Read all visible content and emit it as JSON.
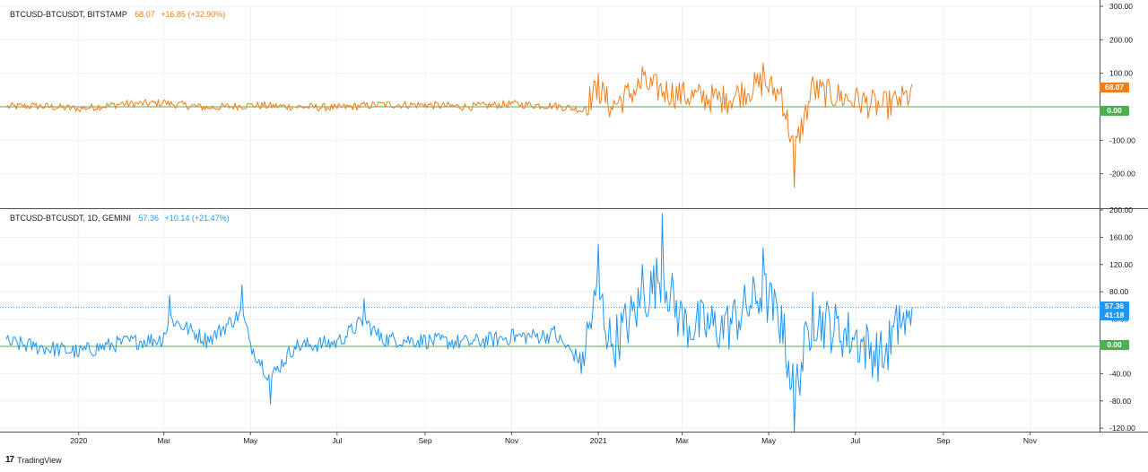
{
  "colors": {
    "top_series": "#f07e1a",
    "bottom_series": "#2196f3",
    "zero_line": "#4caf50",
    "grid": "#eef0f4",
    "pane_border": "#50535e"
  },
  "panes": {
    "top": {
      "symbol": "BTCUSD-BTCUSDT, BITSTAMP",
      "value": "68.07",
      "change": "+16.85 (+32.90%)",
      "price_tag": "68.07",
      "zero_tag": "0.00"
    },
    "bottom": {
      "symbol": "BTCUSD-BTCUSDT, 1D, GEMINI",
      "value": "57.36",
      "change": "+10.14 (+21.47%)",
      "price_tag": "57.36",
      "countdown": "41:18",
      "zero_tag": "0.00"
    }
  },
  "branding": {
    "logo": "17",
    "name": "TradingView"
  },
  "chart_data": [
    {
      "type": "line",
      "title": "BTCUSD-BTCUSDT, BITSTAMP",
      "y_ticks": [
        "300.00",
        "200.00",
        "100.00",
        "-100.00",
        "-200.00"
      ],
      "ylim": [
        -300,
        300
      ],
      "x_ticks": [
        "2020",
        "Mar",
        "May",
        "Jul",
        "Sep",
        "Nov",
        "2021",
        "Mar",
        "May",
        "Jul",
        "Sep",
        "Nov"
      ],
      "series": [
        {
          "x": [
            "2019-11-11",
            "2019-12-01",
            "2020-01-01",
            "2020-02-01",
            "2020-03-01",
            "2020-04-01",
            "2020-05-01",
            "2020-06-01",
            "2020-07-01",
            "2020-08-01",
            "2020-09-01",
            "2020-10-01",
            "2020-11-01",
            "2020-12-01",
            "2020-12-20",
            "2021-01-01",
            "2021-01-10",
            "2021-02-01",
            "2021-03-01",
            "2021-04-01",
            "2021-04-27",
            "2021-05-10",
            "2021-05-19",
            "2021-06-01",
            "2021-07-01",
            "2021-07-20",
            "2021-08-01",
            "2021-08-10"
          ],
          "values": [
            0,
            5,
            -10,
            15,
            20,
            -5,
            8,
            0,
            -5,
            12,
            10,
            0,
            15,
            5,
            -15,
            100,
            0,
            120,
            60,
            40,
            130,
            60,
            -240,
            90,
            35,
            0,
            30,
            68
          ]
        }
      ],
      "zero_line": 0
    },
    {
      "type": "line",
      "title": "BTCUSD-BTCUSDT, 1D, GEMINI",
      "y_ticks": [
        "200.00",
        "160.00",
        "120.00",
        "80.00",
        "40.00",
        "-40.00",
        "-80.00",
        "-120.00"
      ],
      "ylim": [
        -125,
        200
      ],
      "x_ticks": [
        "2020",
        "Mar",
        "May",
        "Jul",
        "Sep",
        "Nov",
        "2021",
        "Mar",
        "May",
        "Jul",
        "Sep",
        "Nov"
      ],
      "series": [
        {
          "x": [
            "2019-11-11",
            "2019-12-01",
            "2020-01-01",
            "2020-02-01",
            "2020-03-01",
            "2020-03-05",
            "2020-04-01",
            "2020-04-25",
            "2020-05-01",
            "2020-05-15",
            "2020-06-01",
            "2020-07-01",
            "2020-07-20",
            "2020-08-01",
            "2020-09-01",
            "2020-10-01",
            "2020-11-01",
            "2020-12-01",
            "2020-12-20",
            "2021-01-01",
            "2021-01-10",
            "2021-02-01",
            "2021-02-15",
            "2021-03-01",
            "2021-04-01",
            "2021-04-27",
            "2021-05-10",
            "2021-05-19",
            "2021-06-01",
            "2021-07-01",
            "2021-07-20",
            "2021-08-01",
            "2021-08-10"
          ],
          "values": [
            10,
            0,
            -15,
            10,
            20,
            75,
            15,
            90,
            5,
            -85,
            0,
            10,
            70,
            20,
            15,
            10,
            25,
            30,
            -40,
            150,
            0,
            120,
            195,
            60,
            50,
            145,
            60,
            -125,
            80,
            20,
            -30,
            60,
            57
          ]
        }
      ],
      "zero_line": 0
    }
  ]
}
